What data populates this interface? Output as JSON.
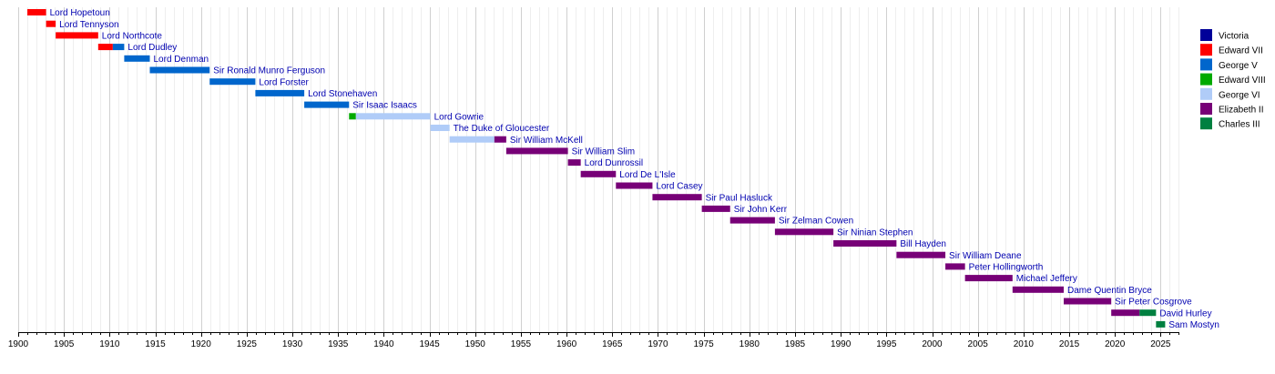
{
  "chart_data": {
    "type": "timeline",
    "x_axis": {
      "min": 1900,
      "max": 2027,
      "major_ticks": [
        1900,
        1905,
        1910,
        1915,
        1920,
        1925,
        1930,
        1935,
        1940,
        1945,
        1950,
        1955,
        1960,
        1965,
        1970,
        1975,
        1980,
        1985,
        1990,
        1995,
        2000,
        2005,
        2010,
        2015,
        2020,
        2025
      ],
      "tick_labels": [
        "1900",
        "1905",
        "1910",
        "1915",
        "1920",
        "1925",
        "1930",
        "1935",
        "1940",
        "1945",
        "1950",
        "1955",
        "1960",
        "1965",
        "1970",
        "1975",
        "1980",
        "1985",
        "1990",
        "1995",
        "2000",
        "2005",
        "2010",
        "2015",
        "2020",
        "2025"
      ],
      "minor_grid": "yearly",
      "grid": true
    },
    "legend": {
      "placement": "top-right",
      "items": [
        {
          "name": "Victoria",
          "color": "#000099"
        },
        {
          "name": "Edward VII",
          "color": "#ff0000"
        },
        {
          "name": "George V",
          "color": "#0066cc"
        },
        {
          "name": "Edward VIII",
          "color": "#00aa00"
        },
        {
          "name": "George VI",
          "color": "#b0ccf8"
        },
        {
          "name": "Elizabeth II",
          "color": "#770077"
        },
        {
          "name": "Charles III",
          "color": "#008040"
        }
      ]
    },
    "rows": [
      {
        "label": "Lord Hopetoun",
        "segments": [
          {
            "start": 1901.0,
            "end": 1903.05,
            "monarch": "Edward VII"
          }
        ]
      },
      {
        "label": "Lord Tennyson",
        "segments": [
          {
            "start": 1903.05,
            "end": 1904.1,
            "monarch": "Edward VII"
          }
        ]
      },
      {
        "label": "Lord Northcote",
        "segments": [
          {
            "start": 1904.1,
            "end": 1908.75,
            "monarch": "Edward VII"
          }
        ]
      },
      {
        "label": "Lord Dudley",
        "segments": [
          {
            "start": 1908.75,
            "end": 1910.35,
            "monarch": "Edward VII"
          },
          {
            "start": 1910.35,
            "end": 1911.6,
            "monarch": "George V"
          }
        ]
      },
      {
        "label": "Lord Denman",
        "segments": [
          {
            "start": 1911.6,
            "end": 1914.4,
            "monarch": "George V"
          }
        ]
      },
      {
        "label": "Sir Ronald Munro Ferguson",
        "segments": [
          {
            "start": 1914.4,
            "end": 1920.95,
            "monarch": "George V"
          }
        ]
      },
      {
        "label": "Lord Forster",
        "segments": [
          {
            "start": 1920.95,
            "end": 1925.95,
            "monarch": "George V"
          }
        ]
      },
      {
        "label": "Lord Stonehaven",
        "segments": [
          {
            "start": 1925.95,
            "end": 1931.3,
            "monarch": "George V"
          }
        ]
      },
      {
        "label": "Sir Isaac Isaacs",
        "segments": [
          {
            "start": 1931.3,
            "end": 1936.2,
            "monarch": "George V"
          }
        ]
      },
      {
        "label": "Lord Gowrie",
        "segments": [
          {
            "start": 1936.2,
            "end": 1936.95,
            "monarch": "Edward VIII"
          },
          {
            "start": 1936.95,
            "end": 1945.1,
            "monarch": "George VI"
          }
        ]
      },
      {
        "label": "The Duke of Gloucester",
        "segments": [
          {
            "start": 1945.1,
            "end": 1947.2,
            "monarch": "George VI"
          }
        ]
      },
      {
        "label": "Sir William McKell",
        "segments": [
          {
            "start": 1947.2,
            "end": 1952.1,
            "monarch": "George VI"
          },
          {
            "start": 1952.1,
            "end": 1953.4,
            "monarch": "Elizabeth II"
          }
        ]
      },
      {
        "label": "Sir William Slim",
        "segments": [
          {
            "start": 1953.4,
            "end": 1960.15,
            "monarch": "Elizabeth II"
          }
        ]
      },
      {
        "label": "Lord Dunrossil",
        "segments": [
          {
            "start": 1960.15,
            "end": 1961.55,
            "monarch": "Elizabeth II"
          }
        ]
      },
      {
        "label": "Lord De L'Isle",
        "segments": [
          {
            "start": 1961.55,
            "end": 1965.4,
            "monarch": "Elizabeth II"
          }
        ]
      },
      {
        "label": "Lord Casey",
        "segments": [
          {
            "start": 1965.4,
            "end": 1969.4,
            "monarch": "Elizabeth II"
          }
        ]
      },
      {
        "label": "Sir Paul Hasluck",
        "segments": [
          {
            "start": 1969.4,
            "end": 1974.8,
            "monarch": "Elizabeth II"
          }
        ]
      },
      {
        "label": "Sir John Kerr",
        "segments": [
          {
            "start": 1974.8,
            "end": 1977.9,
            "monarch": "Elizabeth II"
          }
        ]
      },
      {
        "label": "Sir Zelman Cowen",
        "segments": [
          {
            "start": 1977.9,
            "end": 1982.8,
            "monarch": "Elizabeth II"
          }
        ]
      },
      {
        "label": "Sir Ninian Stephen",
        "segments": [
          {
            "start": 1982.8,
            "end": 1989.2,
            "monarch": "Elizabeth II"
          }
        ]
      },
      {
        "label": "Bill Hayden",
        "segments": [
          {
            "start": 1989.2,
            "end": 1996.1,
            "monarch": "Elizabeth II"
          }
        ]
      },
      {
        "label": "Sir William Deane",
        "segments": [
          {
            "start": 1996.1,
            "end": 2001.45,
            "monarch": "Elizabeth II"
          }
        ]
      },
      {
        "label": "Peter Hollingworth",
        "segments": [
          {
            "start": 2001.45,
            "end": 2003.6,
            "monarch": "Elizabeth II"
          }
        ]
      },
      {
        "label": "Michael Jeffery",
        "segments": [
          {
            "start": 2003.6,
            "end": 2008.8,
            "monarch": "Elizabeth II"
          }
        ]
      },
      {
        "label": "Dame Quentin Bryce",
        "segments": [
          {
            "start": 2008.8,
            "end": 2014.4,
            "monarch": "Elizabeth II"
          }
        ]
      },
      {
        "label": "Sir Peter Cosgrove",
        "segments": [
          {
            "start": 2014.4,
            "end": 2019.6,
            "monarch": "Elizabeth II"
          }
        ]
      },
      {
        "label": "David Hurley",
        "segments": [
          {
            "start": 2019.6,
            "end": 2022.7,
            "monarch": "Elizabeth II"
          },
          {
            "start": 2022.7,
            "end": 2024.5,
            "monarch": "Charles III"
          }
        ]
      },
      {
        "label": "Sam Mostyn",
        "segments": [
          {
            "start": 2024.5,
            "end": 2025.5,
            "monarch": "Charles III"
          }
        ]
      }
    ]
  }
}
